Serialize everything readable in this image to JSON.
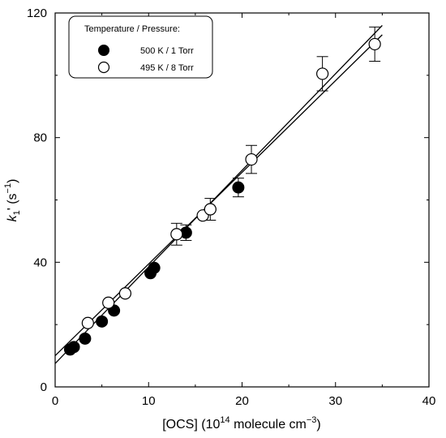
{
  "chart_data": {
    "type": "scatter",
    "xlabel": "[OCS] (10",
    "xlabel_sup": "14",
    "xlabel_mid": " molecule cm",
    "xlabel_sup2": "−3",
    "xlabel_end": ")",
    "ylabel_k": "k",
    "ylabel_sub": "1",
    "ylabel_rest": "' (s",
    "ylabel_sup": "−1",
    "ylabel_end": ")",
    "xlim": [
      0,
      40
    ],
    "ylim": [
      0,
      120
    ],
    "x_ticks": [
      0,
      10,
      20,
      30,
      40
    ],
    "y_ticks": [
      0,
      40,
      80,
      120
    ],
    "legend_title": "Temperature / Pressure:",
    "series": [
      {
        "name": "500 K / 1 Torr",
        "marker": "filled-circle",
        "color": "#000000",
        "points": [
          {
            "x": 1.6,
            "y": 12.0
          },
          {
            "x": 2.0,
            "y": 12.8
          },
          {
            "x": 3.2,
            "y": 15.5
          },
          {
            "x": 5.0,
            "y": 21.0
          },
          {
            "x": 6.3,
            "y": 24.5
          },
          {
            "x": 10.2,
            "y": 36.5
          },
          {
            "x": 10.6,
            "y": 38.2
          },
          {
            "x": 14.0,
            "y": 49.5,
            "err": 2.5
          },
          {
            "x": 16.6,
            "y": 57.0
          },
          {
            "x": 19.6,
            "y": 64.0,
            "err": 3.0
          }
        ],
        "fit": {
          "x0": 0,
          "y0": 7.5,
          "x1": 35,
          "y1": 116
        }
      },
      {
        "name": "495 K / 8 Torr",
        "marker": "open-circle",
        "color": "#000000",
        "points": [
          {
            "x": 3.5,
            "y": 20.5
          },
          {
            "x": 5.7,
            "y": 27.0
          },
          {
            "x": 7.5,
            "y": 30.0
          },
          {
            "x": 13.0,
            "y": 49.0,
            "err": 3.5
          },
          {
            "x": 15.8,
            "y": 55.0
          },
          {
            "x": 16.6,
            "y": 57.0,
            "err": 3.5
          },
          {
            "x": 21.0,
            "y": 73.0,
            "err": 4.5
          },
          {
            "x": 28.6,
            "y": 100.5,
            "err": 5.5
          },
          {
            "x": 34.2,
            "y": 110.0,
            "err": 5.5
          }
        ],
        "fit": {
          "x0": 0,
          "y0": 10.0,
          "x1": 35,
          "y1": 113
        }
      }
    ]
  }
}
